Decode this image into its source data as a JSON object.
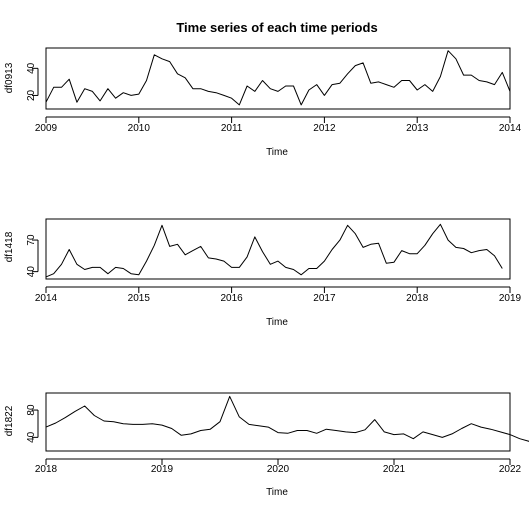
{
  "title": "Time series of each time periods",
  "chart_data": [
    {
      "type": "line",
      "xlabel": "Time",
      "ylabel": "df0913",
      "xlim": [
        2009,
        2014
      ],
      "ylim": [
        10,
        55
      ],
      "x_ticks": [
        2009,
        2010,
        2011,
        2012,
        2013,
        2014
      ],
      "y_ticks": [
        20,
        40
      ],
      "x_start": 2009,
      "frequency": 12,
      "values": [
        15,
        26,
        26,
        32,
        15,
        25,
        23,
        16,
        25,
        18,
        22,
        20,
        21,
        31,
        50,
        47,
        45,
        36,
        33,
        25,
        25,
        23,
        22,
        20,
        18,
        13,
        27,
        23,
        31,
        25,
        23,
        27,
        27,
        13,
        24,
        28,
        20,
        28,
        29,
        36,
        42,
        44,
        29,
        30,
        28,
        26,
        31,
        31,
        24,
        28,
        23,
        34,
        53,
        47,
        35,
        35,
        31,
        30,
        28,
        37,
        23
      ]
    },
    {
      "type": "line",
      "xlabel": "Time",
      "ylabel": "df1418",
      "xlim": [
        2014,
        2019
      ],
      "ylim": [
        33,
        90
      ],
      "x_ticks": [
        2014,
        2015,
        2016,
        2017,
        2018,
        2019
      ],
      "y_ticks": [
        40,
        70
      ],
      "x_start": 2014,
      "frequency": 12,
      "values": [
        35,
        38,
        47,
        61,
        47,
        42,
        44,
        44,
        38,
        44,
        43,
        38,
        37,
        50,
        65,
        84,
        64,
        66,
        56,
        60,
        64,
        53,
        52,
        50,
        44,
        44,
        54,
        73,
        59,
        47,
        50,
        44,
        42,
        37,
        43,
        43,
        50,
        61,
        70,
        84,
        76,
        63,
        66,
        67,
        48,
        49,
        60,
        57,
        57,
        65,
        76,
        85,
        70,
        63,
        62,
        58,
        60,
        61,
        55,
        43
      ]
    },
    {
      "type": "line",
      "xlabel": "Time",
      "ylabel": "df1822",
      "xlim": [
        2018,
        2022
      ],
      "ylim": [
        20,
        105
      ],
      "x_ticks": [
        2018,
        2019,
        2020,
        2021,
        2022
      ],
      "y_ticks": [
        40,
        80
      ],
      "x_start": 2018,
      "frequency": 12,
      "values": [
        55,
        61,
        69,
        78,
        86,
        72,
        64,
        63,
        60,
        59,
        59,
        60,
        58,
        53,
        43,
        45,
        50,
        52,
        63,
        100,
        70,
        59,
        57,
        55,
        47,
        46,
        50,
        50,
        46,
        52,
        50,
        48,
        47,
        51,
        66,
        48,
        44,
        45,
        38,
        48,
        44,
        40,
        45,
        53,
        60,
        55,
        52,
        48,
        44,
        38,
        34,
        33,
        34,
        30,
        29,
        34
      ]
    }
  ]
}
